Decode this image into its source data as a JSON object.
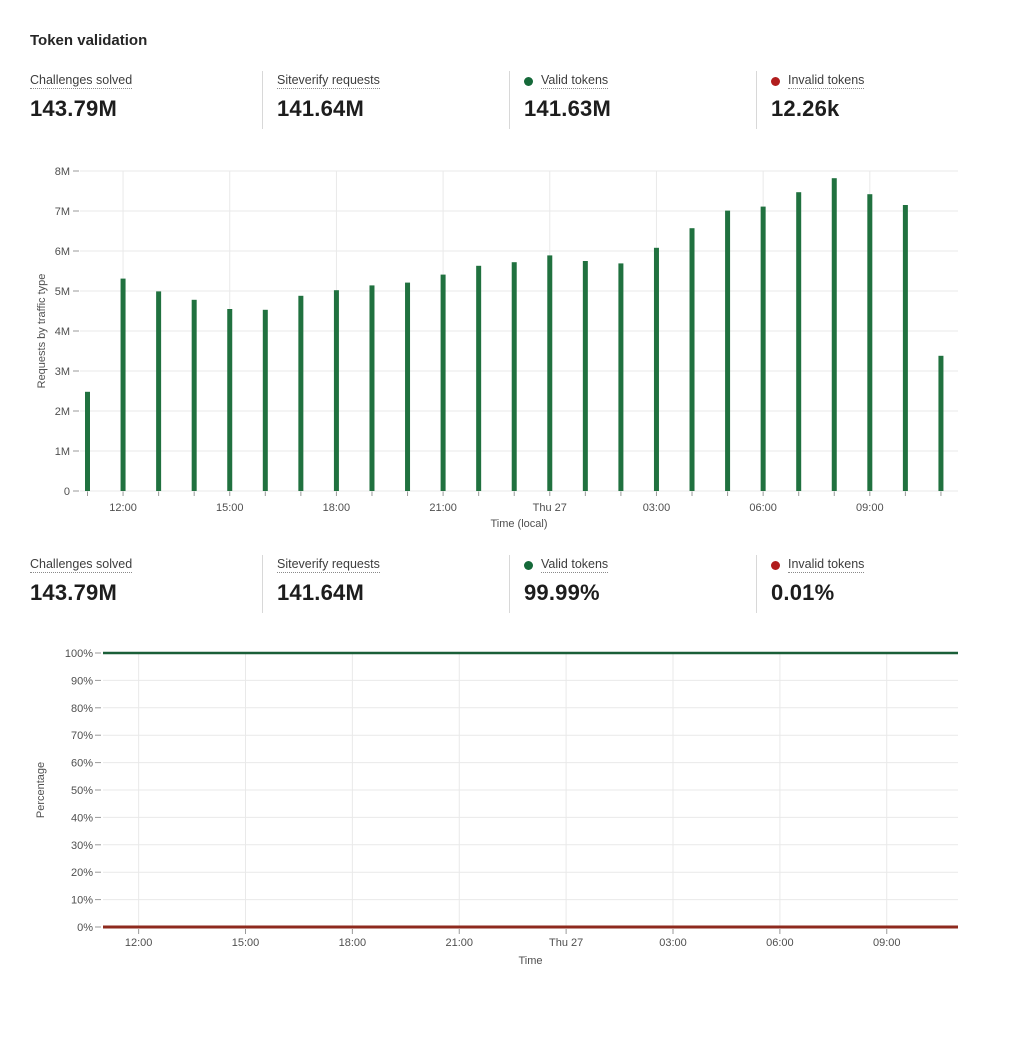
{
  "page": {
    "title": "Token validation"
  },
  "colors": {
    "valid_green": "#156939",
    "invalid_red_dot": "#b11d1d",
    "bar_green": "#20713f",
    "valid_line_green": "#1a5f38",
    "invalid_line_red": "#8e2a1e",
    "grid": "#e9e9e9",
    "tick": "#9a9a9a",
    "axis_text": "#4f4f4f"
  },
  "stats_top": {
    "items": [
      {
        "label": "Challenges solved",
        "value": "143.79M"
      },
      {
        "label": "Siteverify requests",
        "value": "141.64M"
      },
      {
        "label": "Valid tokens",
        "value": "141.63M",
        "dot": "valid_green"
      },
      {
        "label": "Invalid tokens",
        "value": "12.26k",
        "dot": "invalid_red_dot"
      }
    ]
  },
  "stats_bottom": {
    "items": [
      {
        "label": "Challenges solved",
        "value": "143.79M"
      },
      {
        "label": "Siteverify requests",
        "value": "141.64M"
      },
      {
        "label": "Valid tokens",
        "value": "99.99%",
        "dot": "valid_green"
      },
      {
        "label": "Invalid tokens",
        "value": "0.01%",
        "dot": "invalid_red_dot"
      }
    ]
  },
  "chart_data": [
    {
      "type": "bar",
      "title": "",
      "ylabel": "Requests by traffic type",
      "xlabel": "Time (local)",
      "ylim": [
        0,
        8000000
      ],
      "ytick_labels": [
        "0",
        "1M",
        "2M",
        "3M",
        "4M",
        "5M",
        "6M",
        "7M",
        "8M"
      ],
      "grid": true,
      "legend": "none",
      "categories": [
        "11:00",
        "12:00",
        "13:00",
        "14:00",
        "15:00",
        "16:00",
        "17:00",
        "18:00",
        "19:00",
        "20:00",
        "21:00",
        "22:00",
        "23:00",
        "Thu 27 00:00",
        "01:00",
        "02:00",
        "03:00",
        "04:00",
        "05:00",
        "06:00",
        "07:00",
        "08:00",
        "09:00",
        "10:00",
        "11:00"
      ],
      "values_millions": [
        2.48,
        5.31,
        4.99,
        4.78,
        4.55,
        4.53,
        4.88,
        5.02,
        5.14,
        5.21,
        5.41,
        5.63,
        5.72,
        5.89,
        5.75,
        5.69,
        6.08,
        6.57,
        7.01,
        7.11,
        7.47,
        7.82,
        7.42,
        7.15,
        3.38
      ],
      "xticks": {
        "positions": [
          1,
          4,
          7,
          10,
          13,
          16,
          19,
          22
        ],
        "labels": [
          "12:00",
          "15:00",
          "18:00",
          "21:00",
          "Thu 27",
          "03:00",
          "06:00",
          "09:00"
        ]
      },
      "series_name": "Requests by traffic type"
    },
    {
      "type": "line",
      "title": "",
      "ylabel": "Percentage",
      "xlabel": "Time",
      "ylim": [
        0,
        100
      ],
      "ytick_labels": [
        "0%",
        "10%",
        "20%",
        "30%",
        "40%",
        "50%",
        "60%",
        "70%",
        "80%",
        "90%",
        "100%"
      ],
      "grid": true,
      "legend": "none",
      "categories": [
        "11:00",
        "12:00",
        "13:00",
        "14:00",
        "15:00",
        "16:00",
        "17:00",
        "18:00",
        "19:00",
        "20:00",
        "21:00",
        "22:00",
        "23:00",
        "Thu 27 00:00",
        "01:00",
        "02:00",
        "03:00",
        "04:00",
        "05:00",
        "06:00",
        "07:00",
        "08:00",
        "09:00",
        "10:00",
        "11:00"
      ],
      "xticks": {
        "positions": [
          1,
          4,
          7,
          10,
          13,
          16,
          19,
          22
        ],
        "labels": [
          "12:00",
          "15:00",
          "18:00",
          "21:00",
          "Thu 27",
          "03:00",
          "06:00",
          "09:00"
        ]
      },
      "series": [
        {
          "name": "Valid tokens",
          "color_key": "valid_line_green",
          "values": [
            99.99,
            99.99,
            99.99,
            99.99,
            99.99,
            99.99,
            99.99,
            99.99,
            99.99,
            99.99,
            99.99,
            99.99,
            99.99,
            99.99,
            99.99,
            99.99,
            99.99,
            99.99,
            99.99,
            99.99,
            99.99,
            99.99,
            99.99,
            99.99,
            99.99
          ]
        },
        {
          "name": "Invalid tokens",
          "color_key": "invalid_line_red",
          "values": [
            0.01,
            0.01,
            0.01,
            0.01,
            0.01,
            0.01,
            0.01,
            0.01,
            0.01,
            0.01,
            0.01,
            0.01,
            0.01,
            0.01,
            0.01,
            0.01,
            0.01,
            0.01,
            0.01,
            0.01,
            0.01,
            0.01,
            0.01,
            0.01,
            0.01
          ]
        }
      ]
    }
  ]
}
